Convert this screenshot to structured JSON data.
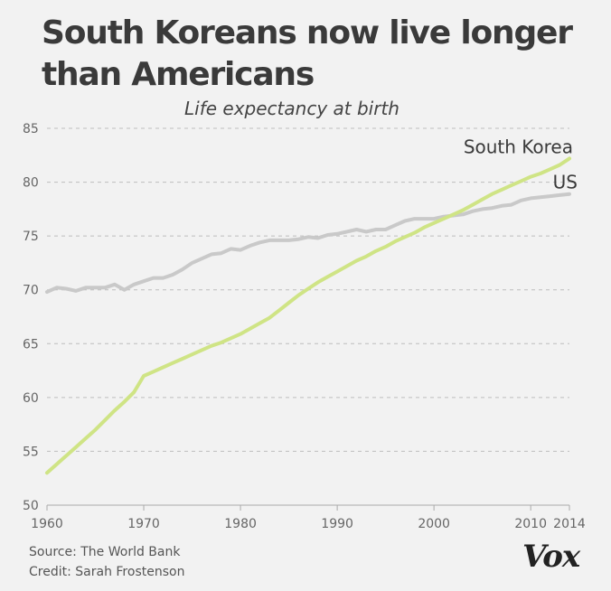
{
  "title": "South Koreans now live longer than Americans",
  "subtitle": "Life expectancy at birth",
  "footer": {
    "source": "Source: The World Bank",
    "credit": "Credit: Sarah Frostenson"
  },
  "logo": "Vox",
  "colors": {
    "south_korea": "#cfe485",
    "us": "#c9c9c9",
    "background": "#f2f2f2",
    "grid": "#bdbdbd"
  },
  "chart_data": {
    "type": "line",
    "title": "South Koreans now live longer than Americans",
    "subtitle": "Life expectancy at birth",
    "xlabel": "",
    "ylabel": "",
    "xlim": [
      1960,
      2014
    ],
    "ylim": [
      50,
      85
    ],
    "x_ticks": [
      1960,
      1970,
      1980,
      1990,
      2000,
      2010,
      2014
    ],
    "y_ticks": [
      50,
      55,
      60,
      65,
      70,
      75,
      80,
      85
    ],
    "grid": "horizontal dashed",
    "series": [
      {
        "name": "South Korea",
        "color": "#cfe485",
        "x": [
          1960,
          1961,
          1962,
          1963,
          1964,
          1965,
          1966,
          1967,
          1968,
          1969,
          1970,
          1971,
          1972,
          1973,
          1974,
          1975,
          1976,
          1977,
          1978,
          1979,
          1980,
          1981,
          1982,
          1983,
          1984,
          1985,
          1986,
          1987,
          1988,
          1989,
          1990,
          1991,
          1992,
          1993,
          1994,
          1995,
          1996,
          1997,
          1998,
          1999,
          2000,
          2001,
          2002,
          2003,
          2004,
          2005,
          2006,
          2007,
          2008,
          2009,
          2010,
          2011,
          2012,
          2013,
          2014
        ],
        "values": [
          53.0,
          53.8,
          54.6,
          55.4,
          56.2,
          57.0,
          57.9,
          58.8,
          59.6,
          60.5,
          62.0,
          62.4,
          62.8,
          63.2,
          63.6,
          64.0,
          64.4,
          64.8,
          65.1,
          65.5,
          65.9,
          66.4,
          66.9,
          67.4,
          68.1,
          68.8,
          69.5,
          70.1,
          70.7,
          71.2,
          71.7,
          72.2,
          72.7,
          73.1,
          73.6,
          74.0,
          74.5,
          74.9,
          75.3,
          75.8,
          76.2,
          76.6,
          77.0,
          77.4,
          77.9,
          78.4,
          78.9,
          79.3,
          79.7,
          80.1,
          80.5,
          80.8,
          81.2,
          81.6,
          82.2
        ]
      },
      {
        "name": "US",
        "color": "#c9c9c9",
        "x": [
          1960,
          1961,
          1962,
          1963,
          1964,
          1965,
          1966,
          1967,
          1968,
          1969,
          1970,
          1971,
          1972,
          1973,
          1974,
          1975,
          1976,
          1977,
          1978,
          1979,
          1980,
          1981,
          1982,
          1983,
          1984,
          1985,
          1986,
          1987,
          1988,
          1989,
          1990,
          1991,
          1992,
          1993,
          1994,
          1995,
          1996,
          1997,
          1998,
          1999,
          2000,
          2001,
          2002,
          2003,
          2004,
          2005,
          2006,
          2007,
          2008,
          2009,
          2010,
          2011,
          2012,
          2013,
          2014
        ],
        "values": [
          69.8,
          70.2,
          70.1,
          69.9,
          70.2,
          70.2,
          70.2,
          70.5,
          70.0,
          70.5,
          70.8,
          71.1,
          71.1,
          71.4,
          71.9,
          72.5,
          72.9,
          73.3,
          73.4,
          73.8,
          73.7,
          74.1,
          74.4,
          74.6,
          74.6,
          74.6,
          74.7,
          74.9,
          74.8,
          75.1,
          75.2,
          75.4,
          75.6,
          75.4,
          75.6,
          75.6,
          76.0,
          76.4,
          76.6,
          76.6,
          76.6,
          76.8,
          76.9,
          77.0,
          77.3,
          77.5,
          77.6,
          77.8,
          77.9,
          78.3,
          78.5,
          78.6,
          78.7,
          78.8,
          78.9
        ]
      }
    ]
  }
}
